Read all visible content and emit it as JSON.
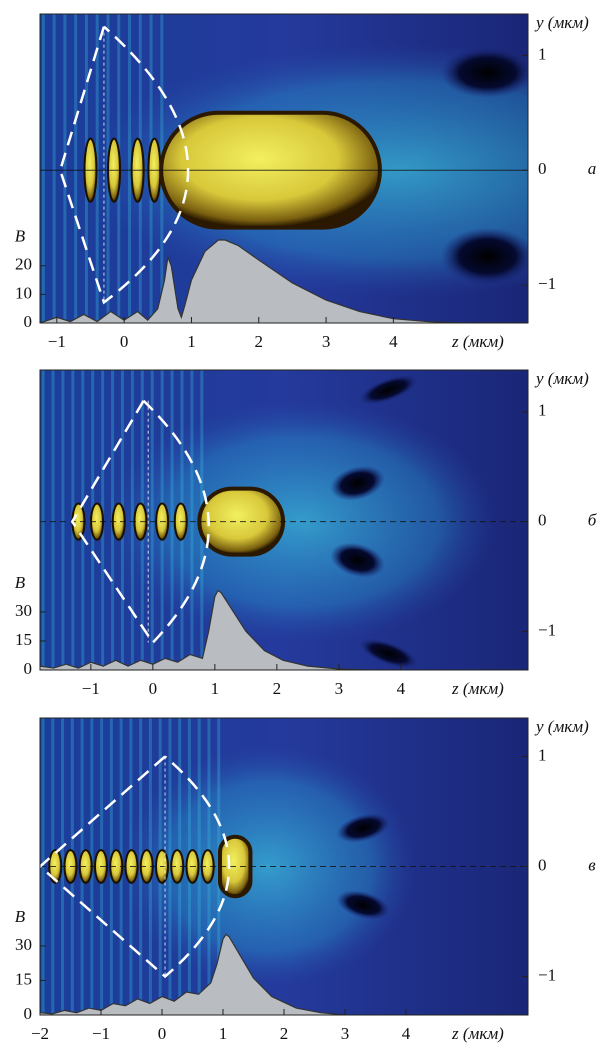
{
  "chart_data": [
    {
      "type": "area",
      "panel_label": "а",
      "xlabel": "z (мкм)",
      "ylabel": "B",
      "y2label": "y (мкм)",
      "x": [
        -1.25,
        -1,
        -0.8,
        -0.6,
        -0.4,
        -0.2,
        0,
        0.2,
        0.35,
        0.5,
        0.6,
        0.65,
        0.7,
        0.8,
        0.85,
        0.9,
        1.0,
        1.2,
        1.4,
        1.5,
        1.7,
        2.0,
        2.5,
        3,
        3.5,
        4,
        4.5,
        5,
        6
      ],
      "values": [
        0,
        2,
        0.5,
        3,
        0.5,
        4,
        1,
        4,
        1,
        5,
        15,
        23,
        20,
        5,
        2,
        6,
        15,
        25,
        29,
        29,
        27,
        22,
        14,
        8,
        4,
        1.5,
        0.5,
        0,
        0
      ],
      "color": "#b9bcc0",
      "xlim": [
        -1.25,
        6
      ],
      "ylim": [
        0,
        108
      ],
      "y2lim": [
        -1.33,
        1.36
      ],
      "xticks": [
        {
          "value": -1,
          "label": "−1"
        },
        0,
        1,
        2,
        3,
        4
      ],
      "yticks": [
        0,
        10,
        20
      ],
      "y2ticks": [
        {
          "value": -1,
          "label": "−1"
        },
        0,
        1
      ]
    },
    {
      "type": "area",
      "panel_label": "б",
      "xlabel": "z (мкм)",
      "ylabel": "B",
      "y2label": "y (мкм)",
      "x": [
        -1.82,
        -1.6,
        -1.4,
        -1.2,
        -1,
        -0.8,
        -0.6,
        -0.4,
        -0.2,
        0,
        0.2,
        0.4,
        0.6,
        0.8,
        0.9,
        1.0,
        1.05,
        1.1,
        1.3,
        1.5,
        1.8,
        2.1,
        2.5,
        3,
        3.5,
        4
      ],
      "values": [
        2,
        1,
        3,
        1,
        4,
        2,
        5,
        2,
        5,
        3,
        6,
        4,
        8,
        6,
        20,
        38,
        41,
        40,
        30,
        20,
        10,
        5,
        2,
        0.5,
        0,
        0
      ],
      "color": "#b9bcc0",
      "xlim": [
        -1.82,
        6.05
      ],
      "ylim": [
        0,
        155
      ],
      "y2lim": [
        -1.35,
        1.38
      ],
      "xticks": [
        {
          "value": -1,
          "label": "−1"
        },
        0,
        1,
        2,
        3,
        4
      ],
      "yticks": [
        0,
        15,
        30
      ],
      "y2ticks": [
        {
          "value": -1,
          "label": "−1"
        },
        0,
        1
      ]
    },
    {
      "type": "area",
      "panel_label": "в",
      "xlabel": "z (мкм)",
      "ylabel": "B",
      "y2label": "y (мкм)",
      "x": [
        -2,
        -1.8,
        -1.6,
        -1.4,
        -1.2,
        -1,
        -0.8,
        -0.6,
        -0.4,
        -0.2,
        0,
        0.2,
        0.4,
        0.6,
        0.8,
        0.9,
        1.0,
        1.05,
        1.1,
        1.3,
        1.5,
        1.8,
        2.2,
        2.6,
        3
      ],
      "values": [
        1,
        0.5,
        2,
        1,
        3,
        2,
        5,
        4,
        7,
        5,
        8,
        6,
        10,
        9,
        14,
        22,
        33,
        35,
        34,
        25,
        16,
        8,
        3,
        1,
        0
      ],
      "color": "#b9bcc0",
      "xlim": [
        -2,
        6
      ],
      "ylim": [
        0,
        129
      ],
      "y2lim": [
        -1.35,
        1.35
      ],
      "xticks": [
        {
          "value": -2,
          "label": "−2"
        },
        {
          "value": -1,
          "label": "−1"
        },
        0,
        1,
        2,
        3,
        4
      ],
      "yticks": [
        0,
        15,
        30
      ],
      "y2ticks": [
        {
          "value": -1,
          "label": "−1"
        },
        0,
        1
      ]
    }
  ]
}
